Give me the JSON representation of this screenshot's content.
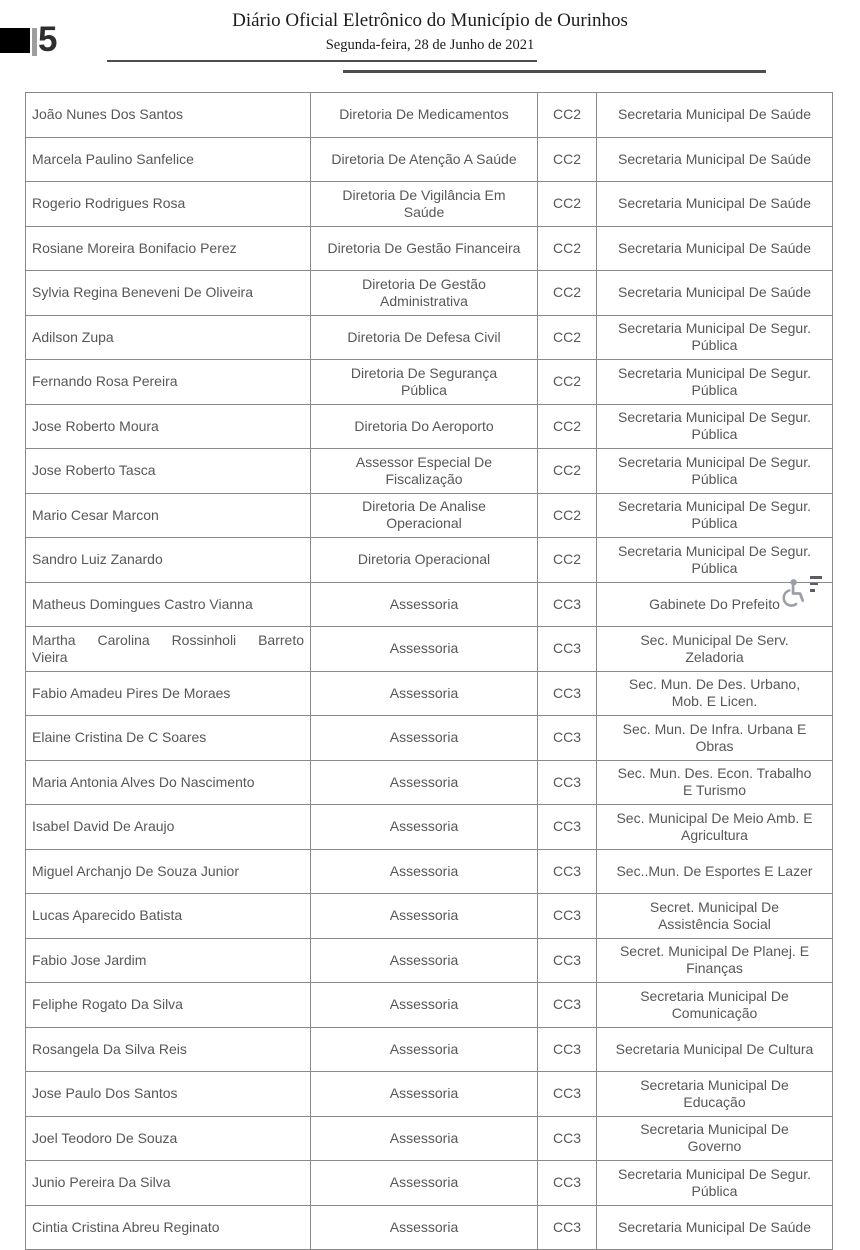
{
  "header": {
    "page_number": "5",
    "title": "Diário Oficial Eletrônico do Município de Ourinhos",
    "date": "Segunda-feira, 28 de Junho de 2021"
  },
  "table": {
    "rows": [
      {
        "name": [
          "João Nunes Dos Santos"
        ],
        "position": [
          "Diretoria De Medicamentos"
        ],
        "level": "CC2",
        "secretariat": [
          "Secretaria Municipal De Saúde"
        ]
      },
      {
        "name": [
          "Marcela Paulino Sanfelice"
        ],
        "position": [
          "Diretoria De Atenção A Saúde"
        ],
        "level": "CC2",
        "secretariat": [
          "Secretaria Municipal De Saúde"
        ]
      },
      {
        "name": [
          "Rogerio Rodrigues Rosa"
        ],
        "position": [
          "Diretoria De Vigilância Em",
          "Saúde"
        ],
        "level": "CC2",
        "secretariat": [
          "Secretaria Municipal De Saúde"
        ]
      },
      {
        "name": [
          "Rosiane Moreira Bonifacio Perez"
        ],
        "position": [
          "Diretoria De Gestão Financeira"
        ],
        "level": "CC2",
        "secretariat": [
          "Secretaria Municipal De Saúde"
        ]
      },
      {
        "name": [
          "Sylvia Regina Beneveni De Oliveira"
        ],
        "position": [
          "Diretoria De Gestão",
          "Administrativa"
        ],
        "level": "CC2",
        "secretariat": [
          "Secretaria Municipal De Saúde"
        ]
      },
      {
        "name": [
          "Adilson Zupa"
        ],
        "position": [
          "Diretoria De Defesa Civil"
        ],
        "level": "CC2",
        "secretariat": [
          "Secretaria Municipal De Segur.",
          "Pública"
        ]
      },
      {
        "name": [
          "Fernando Rosa Pereira"
        ],
        "position": [
          "Diretoria De Segurança",
          "Pública"
        ],
        "level": "CC2",
        "secretariat": [
          "Secretaria Municipal De Segur.",
          "Pública"
        ]
      },
      {
        "name": [
          "Jose Roberto Moura"
        ],
        "position": [
          "Diretoria Do Aeroporto"
        ],
        "level": "CC2",
        "secretariat": [
          "Secretaria Municipal De Segur.",
          "Pública"
        ]
      },
      {
        "name": [
          "Jose Roberto Tasca"
        ],
        "position": [
          "Assessor Especial De",
          "Fiscalização"
        ],
        "level": "CC2",
        "secretariat": [
          "Secretaria Municipal De Segur.",
          "Pública"
        ]
      },
      {
        "name": [
          "Mario Cesar Marcon"
        ],
        "position": [
          "Diretoria De Analise",
          "Operacional"
        ],
        "level": "CC2",
        "secretariat": [
          "Secretaria Municipal De Segur.",
          "Pública"
        ]
      },
      {
        "name": [
          "Sandro Luiz Zanardo"
        ],
        "position": [
          "Diretoria Operacional"
        ],
        "level": "CC2",
        "secretariat": [
          "Secretaria Municipal De Segur.",
          "Pública"
        ]
      },
      {
        "name": [
          "Matheus Domingues Castro Vianna"
        ],
        "position": [
          "Assessoria"
        ],
        "level": "CC3",
        "secretariat": [
          "Gabinete Do Prefeito"
        ]
      },
      {
        "name": [
          "Martha Carolina Rossinholi Barreto",
          "Vieira"
        ],
        "position": [
          "Assessoria"
        ],
        "level": "CC3",
        "secretariat": [
          "Sec. Municipal De Serv.",
          "Zeladoria"
        ]
      },
      {
        "name": [
          "Fabio Amadeu Pires De Moraes"
        ],
        "position": [
          "Assessoria"
        ],
        "level": "CC3",
        "secretariat": [
          "Sec. Mun. De Des. Urbano,",
          "Mob. E Licen."
        ]
      },
      {
        "name": [
          "Elaine Cristina De C Soares"
        ],
        "position": [
          "Assessoria"
        ],
        "level": "CC3",
        "secretariat": [
          "Sec. Mun. De Infra. Urbana E",
          "Obras"
        ]
      },
      {
        "name": [
          "Maria Antonia Alves Do Nascimento"
        ],
        "position": [
          "Assessoria"
        ],
        "level": "CC3",
        "secretariat": [
          "Sec. Mun. Des. Econ. Trabalho",
          "E Turismo"
        ]
      },
      {
        "name": [
          "Isabel David De Araujo"
        ],
        "position": [
          "Assessoria"
        ],
        "level": "CC3",
        "secretariat": [
          "Sec. Municipal De Meio Amb. E",
          "Agricultura"
        ]
      },
      {
        "name": [
          "Miguel Archanjo De Souza Junior"
        ],
        "position": [
          "Assessoria"
        ],
        "level": "CC3",
        "secretariat": [
          "Sec..Mun. De Esportes E Lazer"
        ]
      },
      {
        "name": [
          "Lucas Aparecido Batista"
        ],
        "position": [
          "Assessoria"
        ],
        "level": "CC3",
        "secretariat": [
          "Secret. Municipal De",
          "Assistência Social"
        ]
      },
      {
        "name": [
          "Fabio Jose Jardim"
        ],
        "position": [
          "Assessoria"
        ],
        "level": "CC3",
        "secretariat": [
          "Secret. Municipal De Planej. E",
          "Finanças"
        ]
      },
      {
        "name": [
          "Feliphe Rogato Da Silva"
        ],
        "position": [
          "Assessoria"
        ],
        "level": "CC3",
        "secretariat": [
          "Secretaria Municipal De",
          "Comunicação"
        ]
      },
      {
        "name": [
          "Rosangela Da Silva Reis"
        ],
        "position": [
          "Assessoria"
        ],
        "level": "CC3",
        "secretariat": [
          "Secretaria Municipal De Cultura"
        ]
      },
      {
        "name": [
          "Jose Paulo Dos Santos"
        ],
        "position": [
          "Assessoria"
        ],
        "level": "CC3",
        "secretariat": [
          "Secretaria Municipal De",
          "Educação"
        ]
      },
      {
        "name": [
          "Joel Teodoro De Souza"
        ],
        "position": [
          "Assessoria"
        ],
        "level": "CC3",
        "secretariat": [
          "Secretaria Municipal De",
          "Governo"
        ]
      },
      {
        "name": [
          "Junio Pereira Da Silva"
        ],
        "position": [
          "Assessoria"
        ],
        "level": "CC3",
        "secretariat": [
          "Secretaria Municipal De Segur.",
          "Pública"
        ]
      },
      {
        "name": [
          "Cintia Cristina Abreu Reginato"
        ],
        "position": [
          "Assessoria"
        ],
        "level": "CC3",
        "secretariat": [
          "Secretaria Municipal De Saúde"
        ]
      }
    ]
  },
  "overlay": {
    "icons": [
      "wheelchair-icon",
      "text-lines-icon"
    ]
  },
  "colors": {
    "table_text": "#575757",
    "table_border": "#8a8a8a",
    "header_text": "#1d1d1d",
    "rule": "#4d4d4d",
    "corner_black": "#000000",
    "corner_bar": "#9e9e9e",
    "a11y_icon": "#9aa0a6"
  }
}
